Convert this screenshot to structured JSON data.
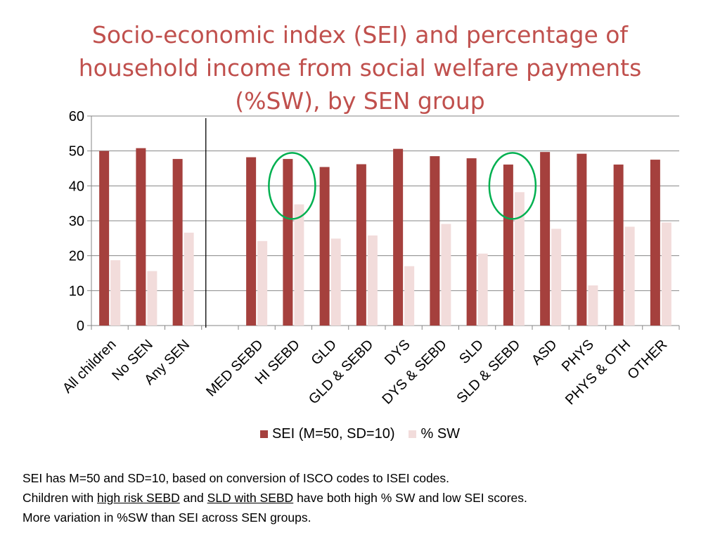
{
  "title_lines": [
    "Socio-economic index (SEI) and percentage of",
    "household income from social welfare payments",
    "(%SW), by SEN group"
  ],
  "chart_data": {
    "type": "bar",
    "title": "Socio-economic index (SEI) and percentage of household income from social welfare payments (%SW), by SEN group",
    "categories": [
      "All children",
      "No SEN",
      "Any SEN",
      "",
      "MED SEBD",
      "HI SEBD",
      "GLD",
      "GLD & SEBD",
      "DYS",
      "DYS & SEBD",
      "SLD",
      "SLD & SEBD",
      "ASD",
      "PHYS",
      "PHYS & OTH",
      "OTHER"
    ],
    "series": [
      {
        "name": "SEI (M=50, SD=10)",
        "color": "#a5403d",
        "values": [
          50,
          50.8,
          47.7,
          null,
          48.2,
          47.7,
          45.4,
          46.2,
          50.6,
          48.5,
          47.9,
          46.1,
          49.7,
          49.2,
          46.1,
          47.5
        ]
      },
      {
        "name": "% SW",
        "color": "#f2dcdb",
        "values": [
          18.7,
          15.6,
          26.6,
          null,
          24.2,
          34.7,
          24.9,
          25.8,
          17,
          29.1,
          20.6,
          38.2,
          27.7,
          11.5,
          28.3,
          29.5
        ]
      }
    ],
    "ylim": [
      0,
      60
    ],
    "yticks": [
      0,
      10,
      20,
      30,
      40,
      50,
      60
    ],
    "grid": true,
    "legend_position": "bottom",
    "highlighted_categories": [
      "HI SEBD",
      "SLD & SEBD"
    ],
    "highlight_color": "#00b050"
  },
  "notes": {
    "line1": "SEI has M=50 and SD=10, based on conversion of ISCO codes to ISEI codes.",
    "line2_a": "Children with ",
    "line2_b": "high risk SEBD",
    "line2_c": " and ",
    "line2_d": "SLD with SEBD",
    "line2_e": " have both high % SW and low SEI scores.",
    "line3": "More variation in %SW than SEI across SEN groups."
  }
}
